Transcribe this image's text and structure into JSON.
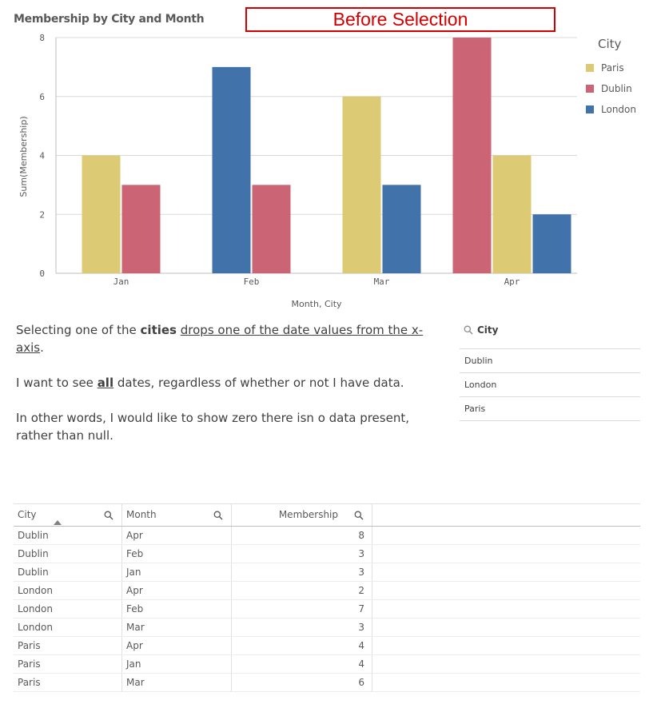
{
  "banner_text": "Before Selection",
  "chart_data": {
    "type": "bar",
    "title": "Membership by City and Month",
    "xlabel": "Month, City",
    "ylabel": "Sum(Membership)",
    "ylim": [
      0,
      8
    ],
    "yticks": [
      0,
      2,
      4,
      6,
      8
    ],
    "grid": true,
    "legend_position": "right",
    "legend_title": "City",
    "categories": [
      "Jan",
      "Feb",
      "Mar",
      "Apr"
    ],
    "series": [
      {
        "name": "Paris",
        "color": "#dccb74",
        "values": [
          4,
          null,
          6,
          4
        ]
      },
      {
        "name": "Dublin",
        "color": "#cb6474",
        "values": [
          3,
          3,
          null,
          8
        ]
      },
      {
        "name": "London",
        "color": "#4272aa",
        "values": [
          null,
          7,
          3,
          2
        ]
      }
    ],
    "bars": [
      {
        "category": "Jan",
        "series": "Paris",
        "value": 4
      },
      {
        "category": "Jan",
        "series": "Dublin",
        "value": 3
      },
      {
        "category": "Feb",
        "series": "London",
        "value": 7
      },
      {
        "category": "Feb",
        "series": "Dublin",
        "value": 3
      },
      {
        "category": "Mar",
        "series": "Paris",
        "value": 6
      },
      {
        "category": "Mar",
        "series": "London",
        "value": 3
      },
      {
        "category": "Apr",
        "series": "Dublin",
        "value": 8
      },
      {
        "category": "Apr",
        "series": "Paris",
        "value": 4
      },
      {
        "category": "Apr",
        "series": "London",
        "value": 2
      }
    ]
  },
  "description": {
    "p1": {
      "a": "Selecting one of the ",
      "b": "cities",
      "c": " ",
      "d": "drops one of the date values from the x-axis",
      "e": "."
    },
    "p2": {
      "a": "I want to see ",
      "b": "all",
      "c": " dates, regardless of whether or not I have data."
    },
    "p3": "In other words, I would like to show zero there isn o data present, rather than null."
  },
  "filter": {
    "title": "City",
    "icon": "search-icon",
    "items": [
      "Dublin",
      "London",
      "Paris"
    ]
  },
  "table": {
    "headers": [
      "City",
      "Month",
      "Membership"
    ],
    "rows": [
      [
        "Dublin",
        "Apr",
        "8"
      ],
      [
        "Dublin",
        "Feb",
        "3"
      ],
      [
        "Dublin",
        "Jan",
        "3"
      ],
      [
        "London",
        "Apr",
        "2"
      ],
      [
        "London",
        "Feb",
        "7"
      ],
      [
        "London",
        "Mar",
        "3"
      ],
      [
        "Paris",
        "Apr",
        "4"
      ],
      [
        "Paris",
        "Jan",
        "4"
      ],
      [
        "Paris",
        "Mar",
        "6"
      ]
    ]
  }
}
